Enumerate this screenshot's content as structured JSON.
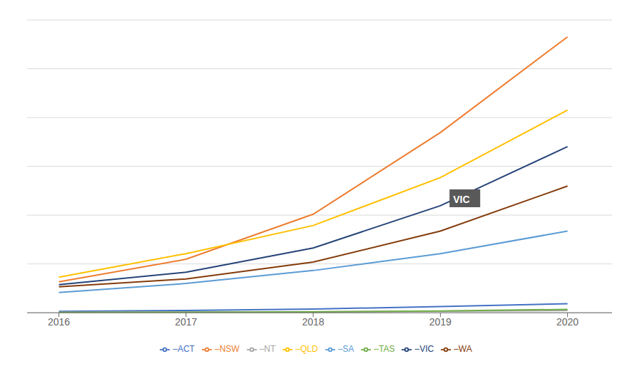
{
  "chart_data": {
    "type": "line",
    "x": [
      2016,
      2017,
      2018,
      2019,
      2020
    ],
    "series": [
      {
        "name": "–ACT",
        "color": "#4472C4",
        "values": [
          2500,
          4000,
          6500,
          11000,
          16000
        ]
      },
      {
        "name": "–NSW",
        "color": "#ED7D31",
        "values": [
          55000,
          95000,
          175000,
          320000,
          490000
        ]
      },
      {
        "name": "–NT",
        "color": "#A5A5A5",
        "values": [
          800,
          1200,
          1800,
          2800,
          4000
        ]
      },
      {
        "name": "–QLD",
        "color": "#FFC000",
        "values": [
          63000,
          105000,
          155000,
          240000,
          360000
        ]
      },
      {
        "name": "–SA",
        "color": "#5B9BD5",
        "values": [
          36000,
          52000,
          75000,
          105000,
          145000
        ]
      },
      {
        "name": "–TAS",
        "color": "#70AD47",
        "values": [
          500,
          800,
          1500,
          3000,
          6000
        ]
      },
      {
        "name": "–VIC",
        "color": "#264478",
        "values": [
          50000,
          72000,
          115000,
          190000,
          295000
        ]
      },
      {
        "name": "–WA",
        "color": "#843C0C",
        "values": [
          46000,
          60000,
          90000,
          145000,
          225000
        ]
      }
    ],
    "xlim": [
      2015.75,
      2020.35
    ],
    "xticks": [
      2016,
      2017,
      2018,
      2019,
      2020
    ],
    "ylim": [
      0,
      520000
    ],
    "yticks": [
      0,
      86666.66666666667,
      173333.33333333334,
      260000,
      346666.6666666667,
      433333.3333333333,
      520000
    ],
    "grid": true,
    "legend": "bottom",
    "tick_labels": "x",
    "annotations": [
      {
        "text": "VIC",
        "x": 2019.1,
        "y": 195000
      }
    ]
  }
}
